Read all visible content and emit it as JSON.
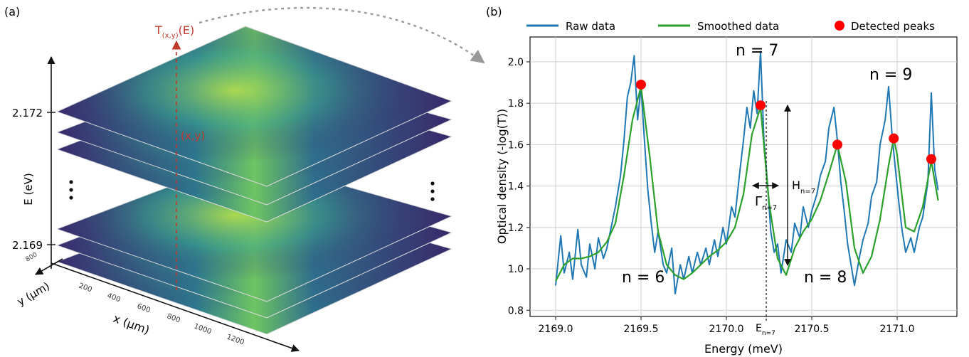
{
  "panel_a": {
    "label": "(a)",
    "axis_e_label": "E (eV)",
    "e_ticks": [
      "2.172",
      "2.169"
    ],
    "x_axis_label": "x (µm)",
    "y_axis_label": "y (µm)",
    "x_ticks": [
      "200",
      "400",
      "600",
      "800",
      "1000",
      "1200"
    ],
    "y_tick": "800",
    "transmission_label": "T",
    "transmission_sub": "(x,y)",
    "transmission_suffix": "(E)",
    "point_label": "(x,y)",
    "colors": {
      "accent": "#c0392b",
      "slice_dark": "#3b2a6b",
      "slice_mid": "#2f6f8f",
      "slice_bright": "#7ccf5a"
    }
  },
  "panel_b": {
    "label": "(b)",
    "legend": [
      "Raw data",
      "Smoothed data",
      "Detected peaks"
    ],
    "annotations": {
      "n6": "n = 6",
      "n7": "n = 7",
      "n8": "n = 8",
      "n9": "n = 9",
      "gamma": "Γ",
      "gamma_sub": "n=7",
      "height": "H",
      "height_sub": "n=7",
      "energy": "E",
      "energy_sub": "n=7"
    },
    "colors": {
      "raw": "#1f77b4",
      "smooth": "#2ca02c",
      "peaks": "#ff0000"
    }
  },
  "chart_data": {
    "type": "line",
    "xlabel": "Energy (meV)",
    "ylabel": "Optical density (-log(T))",
    "xlim": [
      2168.85,
      2171.35
    ],
    "ylim": [
      0.77,
      2.12
    ],
    "xticks": [
      "2169.0",
      "2169.5",
      "2170.0",
      "2170.5",
      "2171.0"
    ],
    "yticks": [
      "0.8",
      "1.0",
      "1.2",
      "1.4",
      "1.6",
      "1.8",
      "2.0"
    ],
    "grid": true,
    "legend_position": "top",
    "series": [
      {
        "name": "Raw data",
        "x": [
          2169.0,
          2169.03,
          2169.05,
          2169.08,
          2169.1,
          2169.13,
          2169.15,
          2169.18,
          2169.2,
          2169.23,
          2169.25,
          2169.28,
          2169.3,
          2169.33,
          2169.35,
          2169.38,
          2169.4,
          2169.42,
          2169.44,
          2169.46,
          2169.48,
          2169.5,
          2169.52,
          2169.54,
          2169.56,
          2169.58,
          2169.6,
          2169.63,
          2169.65,
          2169.68,
          2169.7,
          2169.73,
          2169.75,
          2169.78,
          2169.8,
          2169.83,
          2169.85,
          2169.88,
          2169.9,
          2169.93,
          2169.95,
          2169.98,
          2170.0,
          2170.03,
          2170.05,
          2170.08,
          2170.1,
          2170.12,
          2170.14,
          2170.16,
          2170.18,
          2170.2,
          2170.22,
          2170.24,
          2170.26,
          2170.28,
          2170.3,
          2170.32,
          2170.35,
          2170.38,
          2170.4,
          2170.43,
          2170.45,
          2170.48,
          2170.5,
          2170.53,
          2170.55,
          2170.58,
          2170.6,
          2170.63,
          2170.65,
          2170.67,
          2170.69,
          2170.71,
          2170.73,
          2170.75,
          2170.78,
          2170.8,
          2170.83,
          2170.85,
          2170.88,
          2170.9,
          2170.93,
          2170.95,
          2170.97,
          2170.99,
          2171.01,
          2171.03,
          2171.05,
          2171.08,
          2171.1,
          2171.13,
          2171.15,
          2171.18,
          2171.2,
          2171.22,
          2171.24
        ],
        "y": [
          0.92,
          1.16,
          0.98,
          1.08,
          0.95,
          1.19,
          1.02,
          0.96,
          1.12,
          1.0,
          1.15,
          1.05,
          1.1,
          1.22,
          1.3,
          1.45,
          1.62,
          1.83,
          1.9,
          2.03,
          1.72,
          1.88,
          1.62,
          1.38,
          1.22,
          1.08,
          1.18,
          1.02,
          0.98,
          1.1,
          0.88,
          1.02,
          0.95,
          1.06,
          0.98,
          1.08,
          1.02,
          1.1,
          1.02,
          1.14,
          1.06,
          1.2,
          1.12,
          1.3,
          1.25,
          1.48,
          1.62,
          1.78,
          1.68,
          1.86,
          1.75,
          2.05,
          1.62,
          1.42,
          1.18,
          1.08,
          1.12,
          0.98,
          1.14,
          1.08,
          1.22,
          1.15,
          1.3,
          1.2,
          1.28,
          1.36,
          1.45,
          1.52,
          1.68,
          1.78,
          1.62,
          1.42,
          1.28,
          1.12,
          1.02,
          0.92,
          1.06,
          1.14,
          1.22,
          1.35,
          1.42,
          1.6,
          1.72,
          1.88,
          1.65,
          1.48,
          1.32,
          1.18,
          1.08,
          1.15,
          1.08,
          1.2,
          1.25,
          1.42,
          1.85,
          1.48,
          1.38
        ]
      },
      {
        "name": "Smoothed data",
        "x": [
          2169.0,
          2169.05,
          2169.1,
          2169.15,
          2169.2,
          2169.25,
          2169.3,
          2169.35,
          2169.4,
          2169.45,
          2169.5,
          2169.55,
          2169.6,
          2169.65,
          2169.7,
          2169.75,
          2169.8,
          2169.85,
          2169.9,
          2169.95,
          2170.0,
          2170.05,
          2170.1,
          2170.15,
          2170.2,
          2170.25,
          2170.3,
          2170.35,
          2170.4,
          2170.45,
          2170.5,
          2170.55,
          2170.6,
          2170.65,
          2170.7,
          2170.75,
          2170.8,
          2170.85,
          2170.9,
          2170.95,
          2170.98,
          2171.0,
          2171.05,
          2171.1,
          2171.15,
          2171.2,
          2171.24
        ],
        "y": [
          0.94,
          1.02,
          1.05,
          1.05,
          1.06,
          1.08,
          1.13,
          1.22,
          1.45,
          1.72,
          1.88,
          1.55,
          1.18,
          1.02,
          0.97,
          0.95,
          0.98,
          1.02,
          1.06,
          1.09,
          1.13,
          1.2,
          1.36,
          1.65,
          1.78,
          1.32,
          1.05,
          0.97,
          1.1,
          1.18,
          1.24,
          1.33,
          1.46,
          1.6,
          1.42,
          1.1,
          0.98,
          1.06,
          1.24,
          1.5,
          1.63,
          1.55,
          1.2,
          1.18,
          1.3,
          1.52,
          1.33
        ]
      },
      {
        "name": "Detected peaks",
        "x": [
          2169.5,
          2170.2,
          2170.65,
          2170.98,
          2171.2
        ],
        "y": [
          1.89,
          1.79,
          1.6,
          1.63,
          1.53
        ]
      }
    ]
  }
}
